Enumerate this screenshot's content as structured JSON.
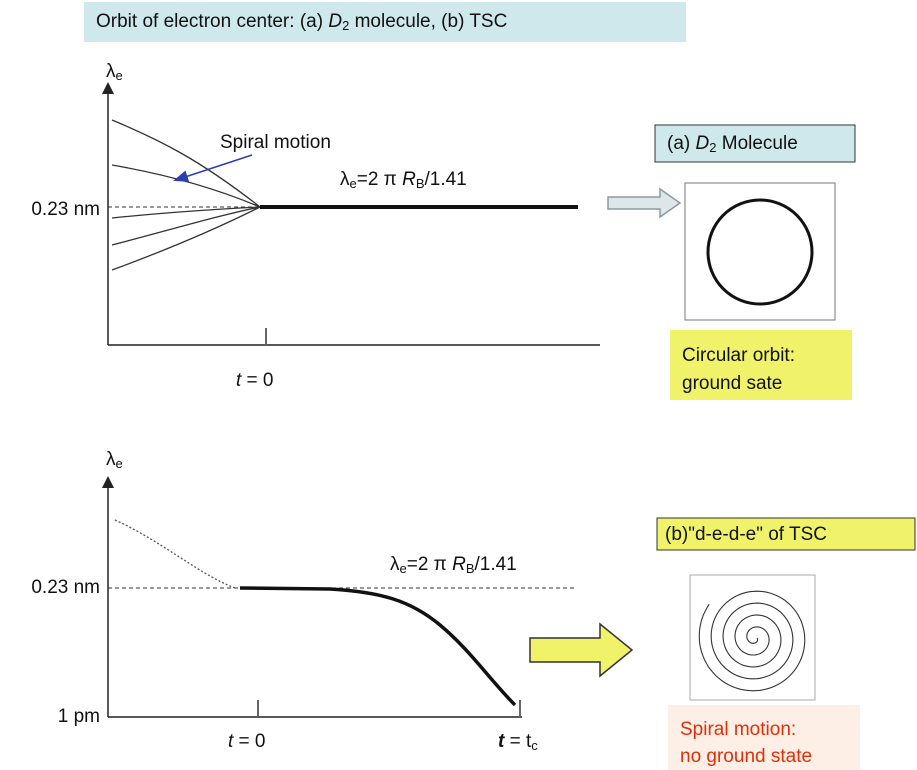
{
  "title": {
    "parts": [
      "Orbit of electron center: (a) ",
      "D",
      "2",
      " molecule, (b) TSC"
    ]
  },
  "panel_a": {
    "y_label": {
      "symbol": "λ",
      "sub": "e"
    },
    "annotation": "Spiral motion",
    "y_tick": "0.23 nm",
    "equation": {
      "lhs": "λ",
      "lhs_sub": "e",
      "mid": "=2 π ",
      "var": "R",
      "var_sub": "B",
      "rest": "/1.41"
    },
    "x_tick": {
      "var": "t",
      "rest": " = 0"
    },
    "label_box": {
      "parts": [
        "(a) ",
        "D",
        "2",
        " Molecule"
      ]
    },
    "caption": [
      "Circular orbit:",
      "ground sate"
    ]
  },
  "panel_b": {
    "y_label": {
      "symbol": "λ",
      "sub": "e"
    },
    "y_ticks": [
      "0.23 nm",
      "1 pm"
    ],
    "equation": {
      "lhs": "λ",
      "lhs_sub": "e",
      "mid": "=2 π ",
      "var": "R",
      "var_sub": "B",
      "rest": "/1.41"
    },
    "x_tick_0": {
      "var": "t",
      "rest": " = 0"
    },
    "x_tick_c": {
      "var": "t",
      "rest": " = ",
      "sym": "t",
      "sub": "c"
    },
    "label_box": "(b)\"d-e-d-e\" of TSC",
    "caption": [
      "Spiral motion:",
      "no ground state"
    ]
  }
}
